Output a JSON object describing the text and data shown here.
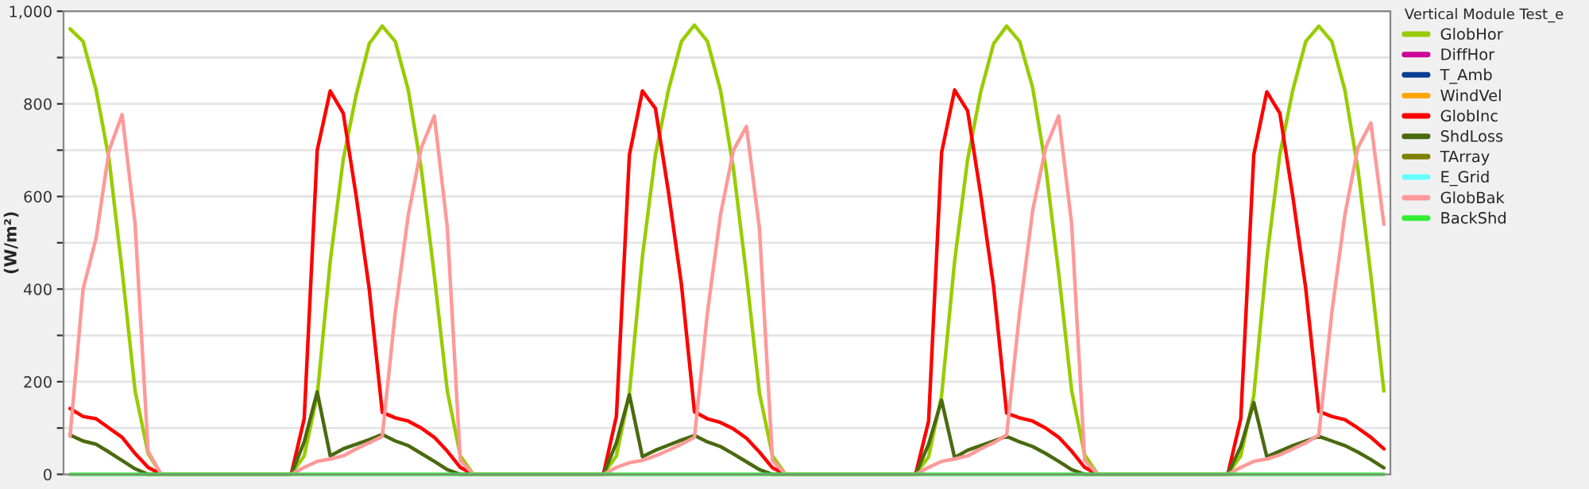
{
  "chart_data": {
    "type": "line",
    "ylabel": "(W/m²)",
    "legend_title": "Vertical Module Test_e",
    "categories": [
      null,
      null,
      null,
      null,
      null,
      null,
      null,
      null,
      null,
      null,
      null,
      null,
      null,
      null,
      null,
      null,
      null,
      null,
      null,
      null,
      null,
      null,
      null,
      null,
      null,
      null,
      null,
      null,
      null,
      null,
      null,
      null,
      null,
      null,
      null,
      null,
      null,
      null,
      null,
      null,
      null,
      null,
      null,
      null,
      null,
      null,
      null,
      null,
      null,
      null,
      null,
      null,
      null,
      null,
      null,
      null,
      null,
      null,
      null,
      null,
      null,
      null,
      null,
      null,
      null,
      null,
      null,
      null,
      null,
      null,
      null,
      null,
      null,
      null,
      null,
      null,
      null,
      null,
      null,
      null,
      null,
      null,
      null,
      null,
      null,
      null,
      null,
      null,
      null,
      null,
      null,
      null,
      null,
      null,
      null,
      null,
      null,
      null,
      null,
      null,
      null,
      null
    ],
    "series": [
      {
        "name": "GlobHor",
        "color": "#99cc00",
        "values": [
          962,
          935,
          830,
          680,
          440,
          180,
          45,
          0,
          0,
          0,
          0,
          0,
          0,
          0,
          0,
          0,
          0,
          0,
          40,
          170,
          460,
          680,
          820,
          930,
          968,
          935,
          830,
          660,
          430,
          180,
          40,
          0,
          0,
          0,
          0,
          0,
          0,
          0,
          0,
          0,
          0,
          0,
          40,
          175,
          470,
          690,
          830,
          935,
          970,
          935,
          830,
          660,
          430,
          175,
          40,
          0,
          0,
          0,
          0,
          0,
          0,
          0,
          0,
          0,
          0,
          0,
          38,
          170,
          460,
          680,
          825,
          930,
          968,
          935,
          835,
          665,
          435,
          180,
          42,
          0,
          0,
          0,
          0,
          0,
          0,
          0,
          0,
          0,
          0,
          0,
          40,
          170,
          465,
          690,
          830,
          935,
          968,
          935,
          830,
          660,
          430,
          180
        ]
      },
      {
        "name": "DiffHor",
        "color": "#cc0099",
        "values": [
          null,
          null,
          null,
          null,
          null,
          null,
          null,
          null,
          null,
          null,
          null,
          null,
          null,
          null,
          null,
          null,
          null,
          null,
          null,
          null,
          null,
          null,
          null,
          null,
          null,
          null,
          null,
          null,
          null,
          null,
          null,
          null,
          null,
          null,
          null,
          null,
          null,
          null,
          null,
          null,
          null,
          null,
          null,
          null,
          null,
          null,
          null,
          null,
          null,
          null,
          null,
          null,
          null,
          null,
          null,
          null,
          null,
          null,
          null,
          null,
          null,
          null,
          null,
          null,
          null,
          null,
          null,
          null,
          null,
          null,
          null,
          null,
          null,
          null,
          null,
          null,
          null,
          null,
          null,
          null,
          null,
          null,
          null,
          null,
          null,
          null,
          null,
          null,
          null,
          null,
          null,
          null,
          null,
          null,
          null,
          null,
          null,
          null,
          null,
          null,
          null,
          null
        ]
      },
      {
        "name": "T_Amb",
        "color": "#0a3d91",
        "values": [
          null,
          null,
          null,
          null,
          null,
          null,
          null,
          null,
          null,
          null,
          null,
          null,
          null,
          null,
          null,
          null,
          null,
          null,
          null,
          null,
          null,
          null,
          null,
          null,
          null,
          null,
          null,
          null,
          null,
          null,
          null,
          null,
          null,
          null,
          null,
          null,
          null,
          null,
          null,
          null,
          null,
          null,
          null,
          null,
          null,
          null,
          null,
          null,
          null,
          null,
          null,
          null,
          null,
          null,
          null,
          null,
          null,
          null,
          null,
          null,
          null,
          null,
          null,
          null,
          null,
          null,
          null,
          null,
          null,
          null,
          null,
          null,
          null,
          null,
          null,
          null,
          null,
          null,
          null,
          null,
          null,
          null,
          null,
          null,
          null,
          null,
          null,
          null,
          null,
          null,
          null,
          null,
          null,
          null,
          null,
          null,
          null,
          null,
          null,
          null,
          null,
          null
        ]
      },
      {
        "name": "WindVel",
        "color": "#ffa500",
        "values": [
          null,
          null,
          null,
          null,
          null,
          null,
          null,
          null,
          null,
          null,
          null,
          null,
          null,
          null,
          null,
          null,
          null,
          null,
          null,
          null,
          null,
          null,
          null,
          null,
          null,
          null,
          null,
          null,
          null,
          null,
          null,
          null,
          null,
          null,
          null,
          null,
          null,
          null,
          null,
          null,
          null,
          null,
          null,
          null,
          null,
          null,
          null,
          null,
          null,
          null,
          null,
          null,
          null,
          null,
          null,
          null,
          null,
          null,
          null,
          null,
          null,
          null,
          null,
          null,
          null,
          null,
          null,
          null,
          null,
          null,
          null,
          null,
          null,
          null,
          null,
          null,
          null,
          null,
          null,
          null,
          null,
          null,
          null,
          null,
          null,
          null,
          null,
          null,
          null,
          null,
          null,
          null,
          null,
          null,
          null,
          null,
          null,
          null,
          null,
          null,
          null,
          null
        ]
      },
      {
        "name": "GlobInc",
        "color": "#ff0000",
        "values": [
          142,
          125,
          120,
          100,
          80,
          45,
          15,
          0,
          0,
          0,
          0,
          0,
          0,
          0,
          0,
          0,
          0,
          0,
          120,
          700,
          828,
          780,
          600,
          400,
          134,
          122,
          115,
          100,
          80,
          50,
          15,
          0,
          0,
          0,
          0,
          0,
          0,
          0,
          0,
          0,
          0,
          0,
          125,
          690,
          828,
          790,
          610,
          410,
          135,
          120,
          112,
          98,
          78,
          48,
          14,
          0,
          0,
          0,
          0,
          0,
          0,
          0,
          0,
          0,
          0,
          0,
          115,
          695,
          830,
          785,
          605,
          405,
          132,
          122,
          115,
          100,
          80,
          50,
          15,
          0,
          0,
          0,
          0,
          0,
          0,
          0,
          0,
          0,
          0,
          0,
          120,
          690,
          826,
          780,
          600,
          400,
          136,
          125,
          118,
          100,
          80,
          55
        ]
      },
      {
        "name": "ShdLoss",
        "color": "#4a6a10",
        "values": [
          85,
          72,
          65,
          48,
          30,
          12,
          0,
          0,
          0,
          0,
          0,
          0,
          0,
          0,
          0,
          0,
          0,
          0,
          70,
          178,
          40,
          55,
          65,
          75,
          86,
          72,
          62,
          45,
          28,
          10,
          0,
          0,
          0,
          0,
          0,
          0,
          0,
          0,
          0,
          0,
          0,
          0,
          68,
          172,
          38,
          52,
          63,
          74,
          84,
          70,
          60,
          44,
          27,
          10,
          0,
          0,
          0,
          0,
          0,
          0,
          0,
          0,
          0,
          0,
          0,
          0,
          65,
          160,
          36,
          52,
          62,
          72,
          82,
          70,
          60,
          45,
          28,
          10,
          0,
          0,
          0,
          0,
          0,
          0,
          0,
          0,
          0,
          0,
          0,
          0,
          60,
          155,
          38,
          50,
          62,
          72,
          82,
          72,
          62,
          48,
          32,
          14
        ]
      },
      {
        "name": "TArray",
        "color": "#808000",
        "values": [
          null,
          null,
          null,
          null,
          null,
          null,
          null,
          null,
          null,
          null,
          null,
          null,
          null,
          null,
          null,
          null,
          null,
          null,
          null,
          null,
          null,
          null,
          null,
          null,
          null,
          null,
          null,
          null,
          null,
          null,
          null,
          null,
          null,
          null,
          null,
          null,
          null,
          null,
          null,
          null,
          null,
          null,
          null,
          null,
          null,
          null,
          null,
          null,
          null,
          null,
          null,
          null,
          null,
          null,
          null,
          null,
          null,
          null,
          null,
          null,
          null,
          null,
          null,
          null,
          null,
          null,
          null,
          null,
          null,
          null,
          null,
          null,
          null,
          null,
          null,
          null,
          null,
          null,
          null,
          null,
          null,
          null,
          null,
          null,
          null,
          null,
          null,
          null,
          null,
          null,
          null,
          null,
          null,
          null,
          null,
          null,
          null,
          null,
          null,
          null,
          null,
          null
        ]
      },
      {
        "name": "E_Grid",
        "color": "#66ffff",
        "values": [
          null,
          null,
          null,
          null,
          null,
          null,
          null,
          null,
          null,
          null,
          null,
          null,
          null,
          null,
          null,
          null,
          null,
          null,
          null,
          null,
          null,
          null,
          null,
          null,
          null,
          null,
          null,
          null,
          null,
          null,
          null,
          null,
          null,
          null,
          null,
          null,
          null,
          null,
          null,
          null,
          null,
          null,
          null,
          null,
          null,
          null,
          null,
          null,
          null,
          null,
          null,
          null,
          null,
          null,
          null,
          null,
          null,
          null,
          null,
          null,
          null,
          null,
          null,
          null,
          null,
          null,
          null,
          null,
          null,
          null,
          null,
          null,
          null,
          null,
          null,
          null,
          null,
          null,
          null,
          null,
          null,
          null,
          null,
          null,
          null,
          null,
          null,
          null,
          null,
          null,
          null,
          null,
          null,
          null,
          null,
          null,
          null,
          null,
          null,
          null,
          null,
          null
        ]
      },
      {
        "name": "GlobBak",
        "color": "#ff9999",
        "values": [
          82,
          400,
          510,
          700,
          777,
          540,
          50,
          0,
          0,
          0,
          0,
          0,
          0,
          0,
          0,
          0,
          0,
          0,
          15,
          28,
          33,
          40,
          55,
          68,
          82,
          350,
          560,
          705,
          774,
          534,
          30,
          0,
          0,
          0,
          0,
          0,
          0,
          0,
          0,
          0,
          0,
          0,
          15,
          25,
          30,
          40,
          52,
          65,
          80,
          350,
          560,
          700,
          751,
          530,
          30,
          0,
          0,
          0,
          0,
          0,
          0,
          0,
          0,
          0,
          0,
          0,
          15,
          28,
          33,
          40,
          55,
          68,
          85,
          350,
          570,
          705,
          774,
          540,
          30,
          0,
          0,
          0,
          0,
          0,
          0,
          0,
          0,
          0,
          0,
          0,
          15,
          28,
          33,
          42,
          55,
          68,
          85,
          350,
          560,
          705,
          759,
          540
        ]
      },
      {
        "name": "BackShd",
        "color": "#33ee33",
        "values": [
          0,
          0,
          0,
          0,
          0,
          0,
          0,
          0,
          0,
          0,
          0,
          0,
          0,
          0,
          0,
          0,
          0,
          0,
          0,
          0,
          0,
          0,
          0,
          0,
          0,
          0,
          0,
          0,
          0,
          0,
          0,
          0,
          0,
          0,
          0,
          0,
          0,
          0,
          0,
          0,
          0,
          0,
          0,
          0,
          0,
          0,
          0,
          0,
          0,
          0,
          0,
          0,
          0,
          0,
          0,
          0,
          0,
          0,
          0,
          0,
          0,
          0,
          0,
          0,
          0,
          0,
          0,
          0,
          0,
          0,
          0,
          0,
          0,
          0,
          0,
          0,
          0,
          0,
          0,
          0,
          0,
          0,
          0,
          0,
          0,
          0,
          0,
          0,
          0,
          0,
          0,
          0,
          0,
          0,
          0,
          0,
          0,
          0,
          0,
          0,
          0,
          0
        ]
      }
    ],
    "ylim": [
      0,
      1000
    ],
    "yticks": [
      {
        "value": 0,
        "label": "0"
      },
      {
        "value": 100,
        "label": null
      },
      {
        "value": 200,
        "label": "200"
      },
      {
        "value": 300,
        "label": null
      },
      {
        "value": 400,
        "label": "400"
      },
      {
        "value": 500,
        "label": null
      },
      {
        "value": 600,
        "label": "600"
      },
      {
        "value": 700,
        "label": null
      },
      {
        "value": 800,
        "label": "800"
      },
      {
        "value": 900,
        "label": null
      },
      {
        "value": 1000,
        "label": "1,000"
      }
    ],
    "tick_labels": "y",
    "grid": "y",
    "legend": "right",
    "marker": "none",
    "line_style": "solid"
  }
}
